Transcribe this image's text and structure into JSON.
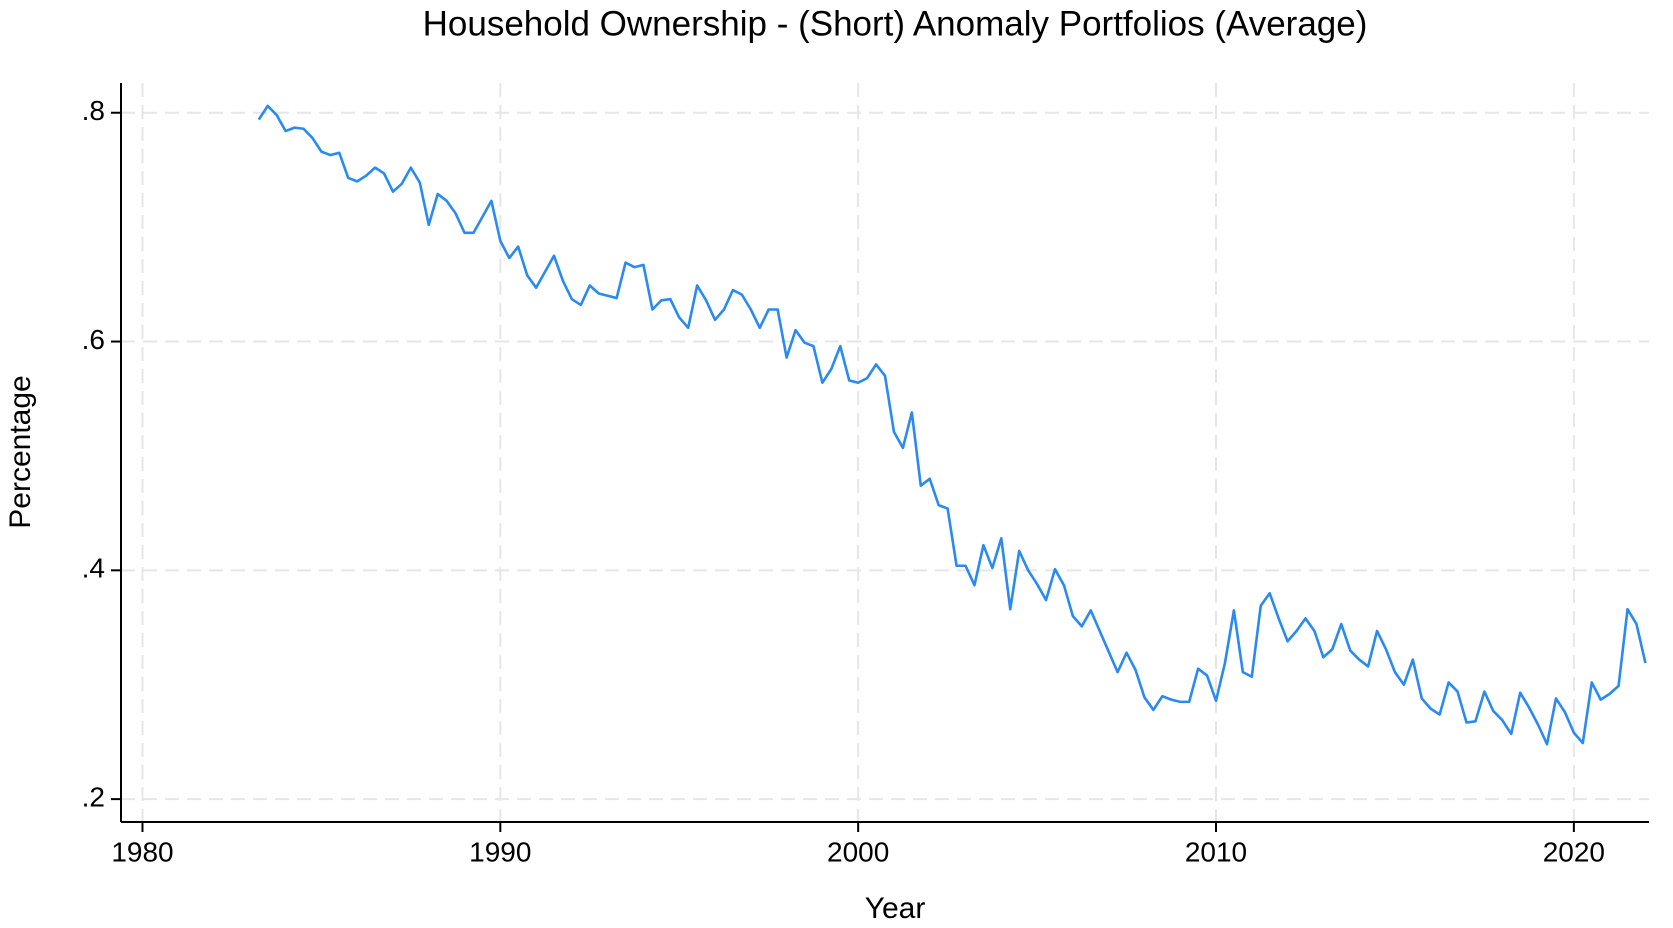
{
  "chart_data": {
    "type": "line",
    "title": "Household Ownership - (Short) Anomaly Portfolios (Average)",
    "x_label": "Year",
    "y_label": "Percentage",
    "x": [
      1983.25,
      1983.5,
      1983.75,
      1984,
      1984.25,
      1984.5,
      1984.75,
      1985,
      1985.25,
      1985.5,
      1985.75,
      1986,
      1986.25,
      1986.5,
      1986.75,
      1987,
      1987.25,
      1987.5,
      1987.75,
      1988,
      1988.25,
      1988.5,
      1988.75,
      1989,
      1989.25,
      1989.5,
      1989.75,
      1990,
      1990.25,
      1990.5,
      1990.75,
      1991,
      1991.25,
      1991.5,
      1991.75,
      1992,
      1992.25,
      1992.5,
      1992.75,
      1993,
      1993.25,
      1993.5,
      1993.75,
      1994,
      1994.25,
      1994.5,
      1994.75,
      1995,
      1995.25,
      1995.5,
      1995.75,
      1996,
      1996.25,
      1996.5,
      1996.75,
      1997,
      1997.25,
      1997.5,
      1997.75,
      1998,
      1998.25,
      1998.5,
      1998.75,
      1999,
      1999.25,
      1999.5,
      1999.75,
      2000,
      2000.25,
      2000.5,
      2000.75,
      2001,
      2001.25,
      2001.5,
      2001.75,
      2002,
      2002.25,
      2002.5,
      2002.75,
      2003,
      2003.25,
      2003.5,
      2003.75,
      2004,
      2004.25,
      2004.5,
      2004.75,
      2005,
      2005.25,
      2005.5,
      2005.75,
      2006,
      2006.25,
      2006.5,
      2006.75,
      2007,
      2007.25,
      2007.5,
      2007.75,
      2008,
      2008.25,
      2008.5,
      2008.75,
      2009,
      2009.25,
      2009.5,
      2009.75,
      2010,
      2010.25,
      2010.5,
      2010.75,
      2011,
      2011.25,
      2011.5,
      2011.75,
      2012,
      2012.25,
      2012.5,
      2012.75,
      2013,
      2013.25,
      2013.5,
      2013.75,
      2014,
      2014.25,
      2014.5,
      2014.75,
      2015,
      2015.25,
      2015.5,
      2015.75,
      2016,
      2016.25,
      2016.5,
      2016.75,
      2017,
      2017.25,
      2017.5,
      2017.75,
      2018,
      2018.25,
      2018.5,
      2018.75,
      2019,
      2019.25,
      2019.5,
      2019.75,
      2020,
      2020.25,
      2020.5,
      2020.75,
      2021,
      2021.25,
      2021.5,
      2021.75,
      2022
    ],
    "series": [
      {
        "color": "#2a8af0",
        "values": [
          0.794,
          0.806,
          0.798,
          0.784,
          0.787,
          0.786,
          0.778,
          0.766,
          0.763,
          0.765,
          0.743,
          0.74,
          0.745,
          0.752,
          0.747,
          0.731,
          0.738,
          0.752,
          0.739,
          0.702,
          0.729,
          0.723,
          0.712,
          0.695,
          0.695,
          0.709,
          0.723,
          0.688,
          0.673,
          0.683,
          0.658,
          0.647,
          0.661,
          0.675,
          0.653,
          0.637,
          0.632,
          0.649,
          0.642,
          0.64,
          0.638,
          0.669,
          0.665,
          0.667,
          0.628,
          0.636,
          0.637,
          0.621,
          0.612,
          0.649,
          0.636,
          0.619,
          0.628,
          0.645,
          0.641,
          0.628,
          0.612,
          0.628,
          0.628,
          0.586,
          0.61,
          0.599,
          0.596,
          0.564,
          0.576,
          0.596,
          0.566,
          0.564,
          0.568,
          0.58,
          0.57,
          0.521,
          0.507,
          0.538,
          0.474,
          0.48,
          0.457,
          0.454,
          0.404,
          0.404,
          0.387,
          0.422,
          0.402,
          0.428,
          0.366,
          0.417,
          0.4,
          0.388,
          0.374,
          0.401,
          0.387,
          0.36,
          0.351,
          0.365,
          0.347,
          0.329,
          0.311,
          0.328,
          0.313,
          0.289,
          0.278,
          0.29,
          0.287,
          0.285,
          0.285,
          0.314,
          0.308,
          0.286,
          0.319,
          0.365,
          0.311,
          0.307,
          0.369,
          0.38,
          0.358,
          0.338,
          0.347,
          0.358,
          0.347,
          0.324,
          0.331,
          0.353,
          0.33,
          0.322,
          0.316,
          0.347,
          0.331,
          0.311,
          0.3,
          0.322,
          0.288,
          0.279,
          0.274,
          0.302,
          0.294,
          0.267,
          0.268,
          0.294,
          0.277,
          0.269,
          0.257,
          0.293,
          0.28,
          0.265,
          0.248,
          0.288,
          0.276,
          0.258,
          0.249,
          0.302,
          0.287,
          0.292,
          0.299,
          0.366,
          0.353,
          0.319
        ]
      }
    ],
    "xlim": [
      1979.4,
      2022.1
    ],
    "xticks": [
      1980,
      1990,
      2000,
      2010,
      2020
    ],
    "ylim": [
      0.18,
      0.826
    ],
    "yticks": [
      {
        "value": 0.2,
        "label": ".2"
      },
      {
        "value": 0.4,
        "label": ".4"
      },
      {
        "value": 0.6,
        "label": ".6"
      },
      {
        "value": 0.8,
        "label": ".8"
      }
    ],
    "grid": true
  }
}
